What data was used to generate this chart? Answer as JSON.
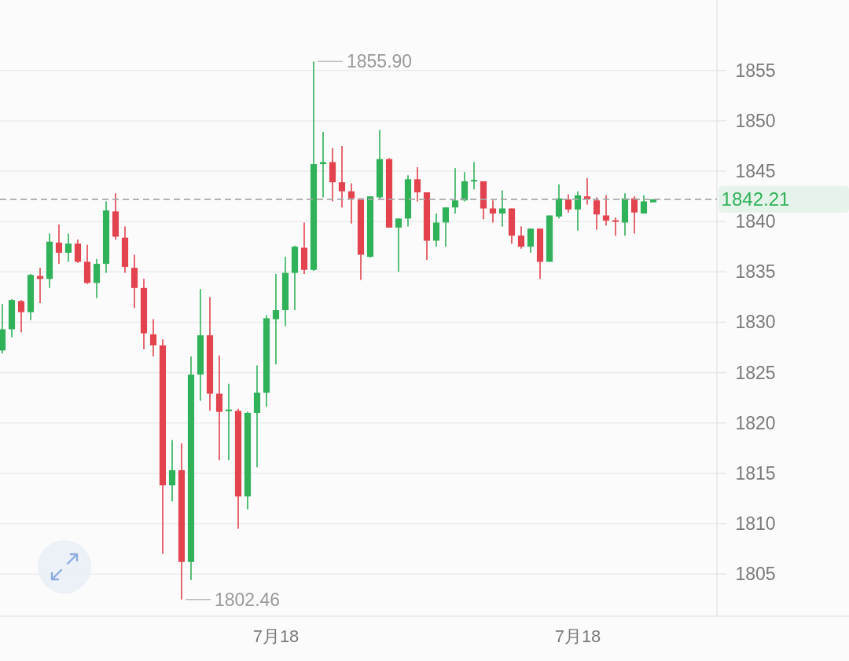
{
  "chart_data": {
    "type": "candlestick",
    "categories": [
      null,
      null,
      null,
      null,
      null,
      null,
      null,
      null,
      null,
      null,
      null,
      null,
      null,
      null,
      null,
      null,
      null,
      null,
      null,
      null,
      null,
      null,
      null,
      null,
      null,
      null,
      null,
      null,
      null,
      "7月18",
      null,
      null,
      null,
      null,
      null,
      null,
      null,
      null,
      null,
      null,
      null,
      null,
      null,
      null,
      null,
      null,
      null,
      null,
      null,
      null,
      null,
      null,
      null,
      null,
      null,
      null,
      null,
      null,
      null,
      null,
      null,
      "7月18",
      null,
      null,
      null,
      null,
      null,
      null,
      null,
      null
    ],
    "ohlc": [
      [
        1827.2,
        1831.8,
        1826.9,
        1829.3
      ],
      [
        1829.3,
        1832.3,
        1828.5,
        1832.2
      ],
      [
        1832.1,
        1832.2,
        1829.0,
        1831.0
      ],
      [
        1831.0,
        1834.8,
        1830.2,
        1834.7
      ],
      [
        1834.6,
        1835.4,
        1831.9,
        1834.3
      ],
      [
        1834.3,
        1838.8,
        1833.4,
        1838.0
      ],
      [
        1837.9,
        1839.7,
        1835.8,
        1836.9
      ],
      [
        1836.9,
        1838.8,
        1836.0,
        1837.8
      ],
      [
        1837.8,
        1838.2,
        1835.9,
        1836.0
      ],
      [
        1836.0,
        1837.7,
        1833.8,
        1833.9
      ],
      [
        1833.9,
        1836.3,
        1832.4,
        1835.8
      ],
      [
        1835.8,
        1842.0,
        1834.9,
        1841.1
      ],
      [
        1841.0,
        1842.8,
        1838.2,
        1838.5
      ],
      [
        1838.4,
        1839.5,
        1834.9,
        1835.5
      ],
      [
        1835.4,
        1836.7,
        1831.4,
        1833.4
      ],
      [
        1833.4,
        1834.3,
        1827.3,
        1828.9
      ],
      [
        1828.8,
        1830.3,
        1826.6,
        1827.7
      ],
      [
        1827.7,
        1828.3,
        1807.0,
        1813.8
      ],
      [
        1813.8,
        1818.3,
        1812.2,
        1815.3
      ],
      [
        1815.3,
        1818.0,
        1802.46,
        1806.2
      ],
      [
        1806.2,
        1826.6,
        1804.4,
        1824.8
      ],
      [
        1824.8,
        1833.3,
        1822.2,
        1828.7
      ],
      [
        1828.7,
        1832.5,
        1821.2,
        1822.9
      ],
      [
        1822.9,
        1826.7,
        1816.3,
        1821.1
      ],
      [
        1821.2,
        1823.9,
        1816.3,
        1821.3
      ],
      [
        1821.2,
        1821.4,
        1809.5,
        1812.7
      ],
      [
        1812.7,
        1821.1,
        1811.4,
        1821.0
      ],
      [
        1821.0,
        1825.7,
        1815.6,
        1823.0
      ],
      [
        1823.0,
        1830.7,
        1821.6,
        1830.4
      ],
      [
        1830.3,
        1834.8,
        1825.8,
        1831.2
      ],
      [
        1831.2,
        1836.5,
        1829.6,
        1834.9
      ],
      [
        1834.9,
        1837.6,
        1831.2,
        1837.5
      ],
      [
        1837.4,
        1839.9,
        1834.8,
        1835.2
      ],
      [
        1835.2,
        1855.9,
        1835.1,
        1845.7
      ],
      [
        1845.7,
        1848.9,
        1842.4,
        1845.9
      ],
      [
        1845.9,
        1847.3,
        1842.0,
        1843.9
      ],
      [
        1843.9,
        1847.5,
        1841.4,
        1843.0
      ],
      [
        1843.0,
        1843.8,
        1839.8,
        1842.3
      ],
      [
        1842.3,
        1842.3,
        1834.2,
        1836.7
      ],
      [
        1836.5,
        1842.5,
        1836.4,
        1842.5
      ],
      [
        1842.4,
        1849.1,
        1842.2,
        1846.2
      ],
      [
        1846.2,
        1846.3,
        1839.4,
        1839.4
      ],
      [
        1839.4,
        1840.3,
        1835.0,
        1840.3
      ],
      [
        1840.3,
        1844.6,
        1839.5,
        1844.2
      ],
      [
        1844.2,
        1845.4,
        1842.0,
        1842.9
      ],
      [
        1842.9,
        1842.9,
        1836.2,
        1838.1
      ],
      [
        1838.1,
        1840.8,
        1837.5,
        1839.9
      ],
      [
        1839.9,
        1841.4,
        1837.5,
        1841.4
      ],
      [
        1841.4,
        1845.3,
        1840.8,
        1842.1
      ],
      [
        1842.1,
        1844.9,
        1842.0,
        1844.0
      ],
      [
        1844.0,
        1845.9,
        1843.2,
        1844.1
      ],
      [
        1844.0,
        1844.0,
        1840.2,
        1841.3
      ],
      [
        1841.3,
        1842.1,
        1839.9,
        1840.8
      ],
      [
        1840.8,
        1843.1,
        1839.5,
        1841.3
      ],
      [
        1841.3,
        1841.3,
        1837.8,
        1838.6
      ],
      [
        1838.6,
        1839.5,
        1837.3,
        1837.5
      ],
      [
        1837.5,
        1839.3,
        1836.9,
        1839.3
      ],
      [
        1839.3,
        1839.3,
        1834.3,
        1836.0
      ],
      [
        1836.0,
        1840.6,
        1836.0,
        1840.6
      ],
      [
        1840.5,
        1843.7,
        1840.3,
        1842.3
      ],
      [
        1842.2,
        1842.7,
        1840.9,
        1841.2
      ],
      [
        1841.2,
        1843.0,
        1839.1,
        1842.6
      ],
      [
        1842.5,
        1844.3,
        1841.7,
        1842.2
      ],
      [
        1842.1,
        1842.4,
        1839.2,
        1840.7
      ],
      [
        1840.6,
        1842.6,
        1839.6,
        1840.1
      ],
      [
        1840.1,
        1840.4,
        1838.6,
        1840.0
      ],
      [
        1839.9,
        1842.8,
        1838.6,
        1842.3
      ],
      [
        1842.3,
        1842.5,
        1838.8,
        1840.9
      ],
      [
        1840.8,
        1842.6,
        1840.8,
        1842.0
      ],
      [
        1841.9,
        1842.21,
        1841.9,
        1842.21
      ]
    ],
    "colors": [
      "#2fb25a",
      "#2fb25a",
      "#e3434f",
      "#2fb25a",
      "#e3434f",
      "#2fb25a",
      "#e3434f",
      "#2fb25a",
      "#e3434f",
      "#e3434f",
      "#2fb25a",
      "#2fb25a",
      "#e3434f",
      "#e3434f",
      "#e3434f",
      "#e3434f",
      "#e3434f",
      "#e3434f",
      "#2fb25a",
      "#e3434f",
      "#2fb25a",
      "#2fb25a",
      "#e3434f",
      "#e3434f",
      "#2fb25a",
      "#e3434f",
      "#2fb25a",
      "#2fb25a",
      "#2fb25a",
      "#2fb25a",
      "#2fb25a",
      "#2fb25a",
      "#e3434f",
      "#2fb25a",
      "#2fb25a",
      "#e3434f",
      "#e3434f",
      "#e3434f",
      "#e3434f",
      "#2fb25a",
      "#2fb25a",
      "#e3434f",
      "#2fb25a",
      "#2fb25a",
      "#e3434f",
      "#e3434f",
      "#2fb25a",
      "#2fb25a",
      "#2fb25a",
      "#2fb25a",
      "#2fb25a",
      "#e3434f",
      "#e3434f",
      "#2fb25a",
      "#e3434f",
      "#e3434f",
      "#2fb25a",
      "#e3434f",
      "#2fb25a",
      "#2fb25a",
      "#e3434f",
      "#2fb25a",
      "#e3434f",
      "#e3434f",
      "#e3434f",
      "#e3434f",
      "#2fb25a",
      "#e3434f",
      "#2fb25a",
      "#2fb25a"
    ],
    "ylim": [
      1800.8,
      1862.0
    ],
    "yticks": [
      1805,
      1810,
      1815,
      1820,
      1825,
      1830,
      1835,
      1840,
      1845,
      1850,
      1855
    ],
    "grid": "y",
    "ref_lines": [
      {
        "axis": "y",
        "value": 1842.21,
        "label": "1842.21",
        "color": "#a6a6a6",
        "line_style": "dashed"
      }
    ],
    "annotations": [
      "1855.90",
      "1802.46"
    ]
  }
}
